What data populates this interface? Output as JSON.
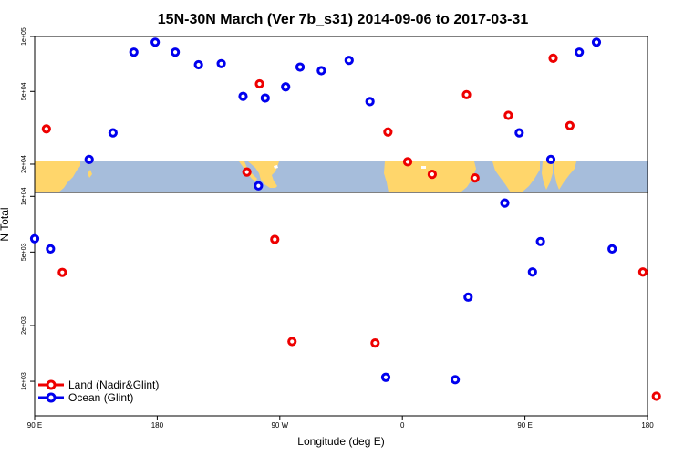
{
  "chart_data": {
    "type": "scatter",
    "title": "15N-30N March (Ver 7b_s31)   2014-09-06 to 2017-03-31",
    "xlabel": "Longitude (deg E)",
    "ylabel": "N Total",
    "x_ticks": [
      {
        "value": 90,
        "label": "90 E"
      },
      {
        "value": 180,
        "label": "180"
      },
      {
        "value": 270,
        "label": "90 W"
      },
      {
        "value": 360,
        "label": "0"
      },
      {
        "value": 450,
        "label": "90 E"
      },
      {
        "value": 540,
        "label": "180"
      }
    ],
    "xlim": [
      90,
      540
    ],
    "y_scale": "log-broken",
    "upper_panel": {
      "ylim": [
        14000,
        100000
      ],
      "ticks": [
        {
          "value": 100000,
          "label": "1e+05"
        },
        {
          "value": 50000,
          "label": "5e+04"
        },
        {
          "value": 20000,
          "label": "2e+04"
        }
      ]
    },
    "lower_panel": {
      "ylim": [
        650,
        10500
      ],
      "ticks": [
        {
          "value": 10000,
          "label": "1e+04"
        },
        {
          "value": 5000,
          "label": "5e+03"
        },
        {
          "value": 2000,
          "label": "2e+03"
        },
        {
          "value": 1000,
          "label": "1e+03"
        }
      ]
    },
    "series": [
      {
        "name": "Land (Nadir&Glint)",
        "color": "#ee0000",
        "points": [
          [
            98.6,
            31200
          ],
          [
            245.8,
            18100
          ],
          [
            255.1,
            55000
          ],
          [
            349.4,
            30000
          ],
          [
            363.9,
            20600
          ],
          [
            381.9,
            17600
          ],
          [
            407.1,
            48000
          ],
          [
            413.3,
            16800
          ],
          [
            437.8,
            37000
          ],
          [
            470.7,
            76000
          ],
          [
            483.0,
            32500
          ],
          [
            110.3,
            3880
          ],
          [
            266.3,
            5850
          ],
          [
            279.0,
            1640
          ],
          [
            340.0,
            1610
          ],
          [
            536.6,
            3900
          ],
          [
            546.5,
            830
          ]
        ]
      },
      {
        "name": "Ocean (Glint)",
        "color": "#0000ee",
        "points": [
          [
            90.0,
            5900
          ],
          [
            130.0,
            21200
          ],
          [
            147.5,
            29700
          ],
          [
            162.8,
            82000
          ],
          [
            178.5,
            93000
          ],
          [
            193.2,
            82000
          ],
          [
            210.3,
            70000
          ],
          [
            227.0,
            71000
          ],
          [
            243.0,
            47000
          ],
          [
            259.3,
            46000
          ],
          [
            274.3,
            53000
          ],
          [
            284.9,
            68000
          ],
          [
            300.5,
            65000
          ],
          [
            320.9,
            74000
          ],
          [
            336.2,
            44000
          ],
          [
            445.8,
            29700
          ],
          [
            469.0,
            21200
          ],
          [
            489.9,
            82000
          ],
          [
            502.5,
            93000
          ],
          [
            101.6,
            5200
          ],
          [
            254.3,
            11400
          ],
          [
            347.8,
            1050
          ],
          [
            398.8,
            1020
          ],
          [
            408.3,
            2850
          ],
          [
            435.2,
            9200
          ],
          [
            455.5,
            3900
          ],
          [
            461.4,
            5700
          ],
          [
            514.0,
            5200
          ]
        ]
      }
    ],
    "legend": {
      "position": "bottom-left",
      "entries": [
        "Land (Nadir&Glint)",
        "Ocean (Glint)"
      ]
    },
    "background_map": "world land/ocean strip 15N-30N (land yellow, ocean blue)",
    "colors": {
      "land": "#ffd66b",
      "ocean": "#a6bddb",
      "land_series": "#ee0000",
      "ocean_series": "#0000ee"
    }
  }
}
